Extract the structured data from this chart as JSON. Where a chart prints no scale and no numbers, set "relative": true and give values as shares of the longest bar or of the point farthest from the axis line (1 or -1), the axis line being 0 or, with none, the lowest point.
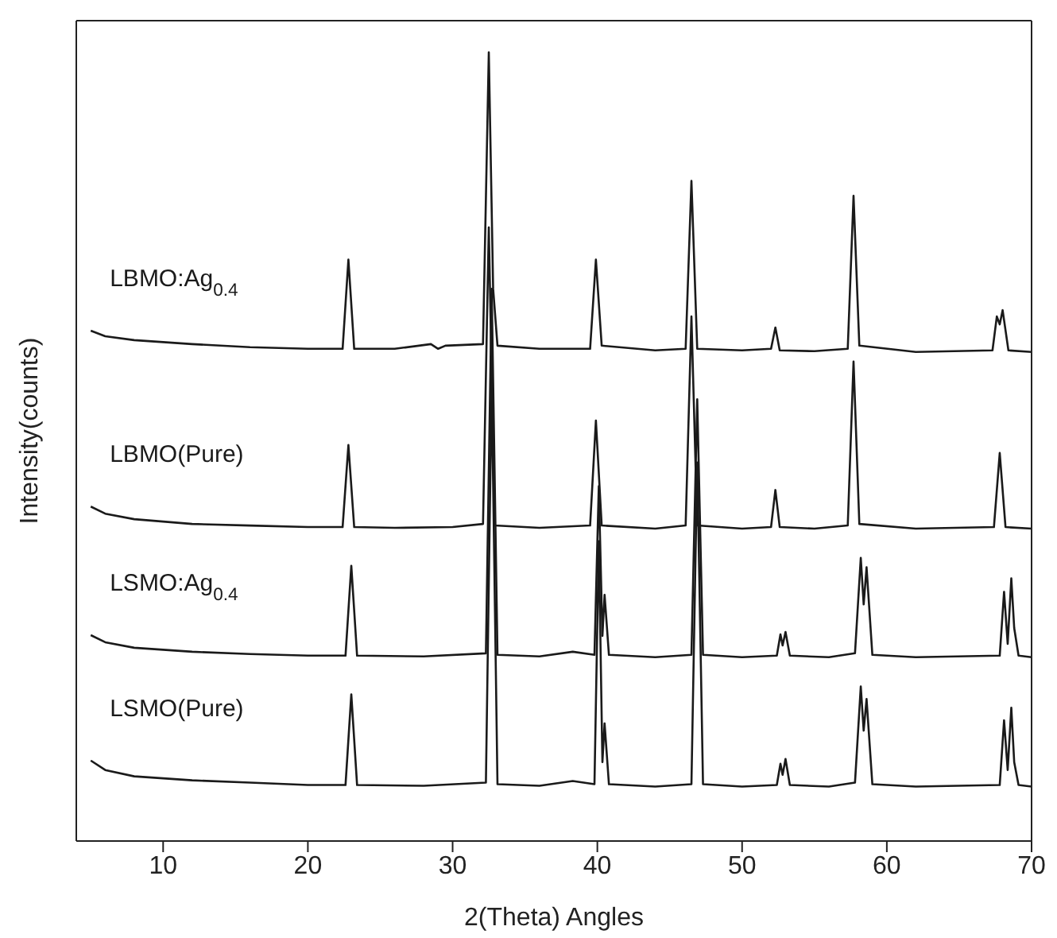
{
  "chart_data": {
    "type": "line",
    "relative": true,
    "xlabel": "2(Theta) Angles",
    "ylabel": "Intensity(counts)",
    "xlim": [
      4,
      70
    ],
    "xticks": [
      10,
      20,
      30,
      40,
      50,
      60,
      70
    ],
    "tick_labels": "x",
    "marker": "none",
    "line_style": "solid",
    "series": [
      {
        "name": "LBMO:Ag$_{0.4}$",
        "color": "#1a1a1a",
        "x": [
          5,
          6,
          8,
          12,
          16,
          20,
          22.4,
          22.8,
          23.2,
          26,
          28.5,
          29,
          29.5,
          32.1,
          32.5,
          32.8,
          33.1,
          36,
          39.5,
          39.9,
          40.3,
          44,
          46.1,
          46.5,
          46.9,
          50,
          52,
          52.3,
          52.6,
          55,
          57.3,
          57.7,
          58.1,
          62,
          67.3,
          67.6,
          67.8,
          68.0,
          68.4,
          70
        ],
        "values": [
          0.647,
          0.64,
          0.635,
          0.63,
          0.626,
          0.624,
          0.624,
          0.737,
          0.624,
          0.624,
          0.63,
          0.624,
          0.628,
          0.63,
          1.0,
          0.7,
          0.628,
          0.624,
          0.624,
          0.737,
          0.628,
          0.622,
          0.624,
          0.837,
          0.624,
          0.622,
          0.624,
          0.651,
          0.622,
          0.621,
          0.624,
          0.818,
          0.628,
          0.62,
          0.622,
          0.665,
          0.655,
          0.673,
          0.622,
          0.62
        ]
      },
      {
        "name": "LBMO(Pure)",
        "color": "#1a1a1a",
        "x": [
          5,
          6,
          8,
          12,
          16,
          20,
          22.4,
          22.8,
          23.2,
          26,
          30,
          32.1,
          32.5,
          32.9,
          36,
          39.5,
          39.9,
          40.3,
          44,
          46.1,
          46.5,
          46.9,
          50,
          52,
          52.3,
          52.6,
          55,
          57.3,
          57.7,
          58.1,
          62,
          67.4,
          67.8,
          68.2,
          70
        ],
        "values": [
          0.424,
          0.415,
          0.408,
          0.402,
          0.4,
          0.398,
          0.398,
          0.502,
          0.398,
          0.397,
          0.398,
          0.402,
          0.778,
          0.4,
          0.397,
          0.4,
          0.533,
          0.4,
          0.396,
          0.4,
          0.665,
          0.4,
          0.396,
          0.398,
          0.445,
          0.398,
          0.396,
          0.4,
          0.608,
          0.402,
          0.396,
          0.398,
          0.492,
          0.398,
          0.396
        ]
      },
      {
        "name": "LSMO:Ag$_{0.4}$",
        "color": "#1a1a1a",
        "x": [
          5,
          6,
          8,
          12,
          16,
          20,
          22.6,
          23.0,
          23.4,
          28,
          32.3,
          32.7,
          33.1,
          36,
          38.3,
          39.8,
          40.1,
          40.35,
          40.5,
          40.8,
          44,
          46.5,
          46.9,
          47.3,
          50,
          52.4,
          52.65,
          52.8,
          53.0,
          53.3,
          56,
          57.8,
          58.2,
          58.4,
          58.6,
          59,
          62,
          67.8,
          68.1,
          68.35,
          68.6,
          68.8,
          69.1,
          70
        ],
        "values": [
          0.261,
          0.252,
          0.245,
          0.24,
          0.237,
          0.235,
          0.235,
          0.349,
          0.235,
          0.234,
          0.238,
          0.7,
          0.236,
          0.234,
          0.24,
          0.236,
          0.45,
          0.26,
          0.312,
          0.236,
          0.233,
          0.236,
          0.56,
          0.236,
          0.233,
          0.235,
          0.262,
          0.248,
          0.265,
          0.235,
          0.233,
          0.238,
          0.359,
          0.3,
          0.347,
          0.236,
          0.233,
          0.235,
          0.316,
          0.25,
          0.333,
          0.27,
          0.235,
          0.233
        ]
      },
      {
        "name": "LSMO(Pure)",
        "color": "#1a1a1a",
        "x": [
          5,
          6,
          8,
          12,
          16,
          20,
          22.6,
          23.0,
          23.4,
          28,
          32.3,
          32.7,
          33.1,
          36,
          38.3,
          39.8,
          40.1,
          40.35,
          40.5,
          40.8,
          44,
          46.5,
          46.9,
          47.3,
          50,
          52.4,
          52.65,
          52.8,
          53.0,
          53.3,
          56,
          57.8,
          58.2,
          58.4,
          58.6,
          59,
          62,
          67.8,
          68.1,
          68.35,
          68.6,
          68.8,
          69.1,
          70
        ],
        "values": [
          0.102,
          0.09,
          0.082,
          0.077,
          0.074,
          0.071,
          0.071,
          0.186,
          0.071,
          0.07,
          0.074,
          0.58,
          0.072,
          0.07,
          0.076,
          0.072,
          0.38,
          0.1,
          0.149,
          0.072,
          0.069,
          0.072,
          0.48,
          0.072,
          0.069,
          0.071,
          0.098,
          0.084,
          0.104,
          0.071,
          0.069,
          0.074,
          0.196,
          0.14,
          0.18,
          0.072,
          0.069,
          0.071,
          0.153,
          0.09,
          0.169,
          0.1,
          0.071,
          0.069
        ]
      }
    ]
  }
}
